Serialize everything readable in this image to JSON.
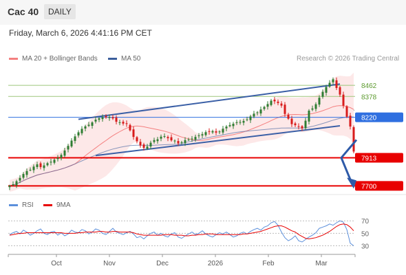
{
  "header": {
    "instrument": "Cac 40",
    "timeframe": "DAILY",
    "datetime": "Friday, March 6, 2026 4:41:16 PM CET"
  },
  "legend": {
    "bollinger": "MA 20 + Bollinger Bands",
    "ma50": "MA 50",
    "rsi": "RSI",
    "rsi_ma": "9MA"
  },
  "credit": "Research © 2026 Trading Central",
  "colors": {
    "bollinger": "#f47f7f",
    "ma50": "#3b5e9c",
    "resistance": "#9dc67b",
    "pivot": "#2f6fe0",
    "support": "#e80000",
    "up_candle": "#2e7d32",
    "down_candle": "#d81b1b",
    "rsi": "#5b8fdb"
  },
  "chart_data": {
    "type": "candlestick",
    "x_tick_labels": [
      "Oct",
      "Nov",
      "Dec",
      "2026",
      "Feb",
      "Mar"
    ],
    "price_levels": [
      {
        "value": 8462,
        "label": "8462",
        "kind": "resistance"
      },
      {
        "value": 8378,
        "label": "8378",
        "kind": "resistance"
      },
      {
        "value": 8220,
        "label": "8220",
        "kind": "pivot"
      },
      {
        "value": 7913,
        "label": "7913",
        "kind": "support"
      },
      {
        "value": 7700,
        "label": "7700",
        "kind": "support"
      }
    ],
    "ylim": [
      7660,
      8640
    ],
    "closes": [
      7700,
      7712,
      7735,
      7760,
      7790,
      7812,
      7822,
      7846,
      7863,
      7842,
      7855,
      7872,
      7883,
      7898,
      7912,
      7935,
      7968,
      8003,
      8043,
      8075,
      8106,
      8132,
      8151,
      8163,
      8181,
      8202,
      8212,
      8221,
      8220,
      8222,
      8211,
      8186,
      8182,
      8172,
      8169,
      8121,
      8071,
      8038,
      8006,
      7988,
      7998,
      8027,
      8047,
      8053,
      8073,
      8077,
      8061,
      8045,
      8043,
      8022,
      8031,
      8047,
      8051,
      8058,
      8071,
      8082,
      8091,
      8107,
      8110,
      8115,
      8104,
      8112,
      8133,
      8149,
      8161,
      8170,
      8182,
      8184,
      8192,
      8204,
      8226,
      8247,
      8257,
      8279,
      8298,
      8320,
      8346,
      8341,
      8328,
      8308,
      8245,
      8209,
      8168,
      8160,
      8147,
      8136,
      8194,
      8270,
      8287,
      8319,
      8368,
      8413,
      8450,
      8481,
      8508,
      8442,
      8392,
      8308,
      8224,
      8150,
      7960
    ],
    "rsi": {
      "series": [
        {
          "name": "RSI",
          "values": [
            48,
            51,
            53,
            49,
            55,
            52,
            47,
            50,
            54,
            57,
            50,
            48,
            52,
            53,
            47,
            51,
            46,
            49,
            55,
            52,
            51,
            56,
            54,
            49,
            52,
            57,
            55,
            50,
            48,
            53,
            58,
            52,
            50,
            48,
            51,
            53,
            49,
            43,
            45,
            41,
            46,
            50,
            52,
            47,
            50,
            46,
            44,
            49,
            51,
            44,
            42,
            46,
            49,
            52,
            48,
            50,
            54,
            49,
            46,
            44,
            48,
            51,
            49,
            52,
            48,
            44,
            46,
            50,
            52,
            49,
            53,
            56,
            58,
            55,
            60,
            62,
            67,
            69,
            63,
            52,
            43,
            38,
            41,
            46,
            38,
            36,
            40,
            44,
            47,
            51,
            58,
            60,
            62,
            65,
            63,
            67,
            70,
            68,
            56,
            34,
            30
          ]
        },
        {
          "name": "9MA",
          "values": [
            47,
            48,
            49,
            50,
            50,
            51,
            51,
            51,
            51,
            51,
            51,
            51,
            51,
            51,
            51,
            51,
            50,
            50,
            50,
            50,
            51,
            51,
            52,
            52,
            52,
            52,
            53,
            53,
            52,
            52,
            53,
            53,
            52,
            52,
            52,
            52,
            51,
            49,
            48,
            47,
            47,
            47,
            47,
            47,
            47,
            48,
            48,
            48,
            47,
            47,
            47,
            46,
            46,
            47,
            47,
            48,
            48,
            49,
            49,
            49,
            48,
            48,
            48,
            48,
            48,
            48,
            48,
            48,
            49,
            49,
            50,
            51,
            52,
            53,
            55,
            57,
            59,
            61,
            62,
            62,
            60,
            57,
            54,
            52,
            48,
            45,
            42,
            41,
            42,
            43,
            45,
            47,
            50,
            53,
            57,
            61,
            64,
            65,
            64,
            60,
            54
          ]
        }
      ],
      "y_ticks": [
        30,
        50,
        70
      ],
      "ylim": [
        25,
        78
      ]
    }
  }
}
